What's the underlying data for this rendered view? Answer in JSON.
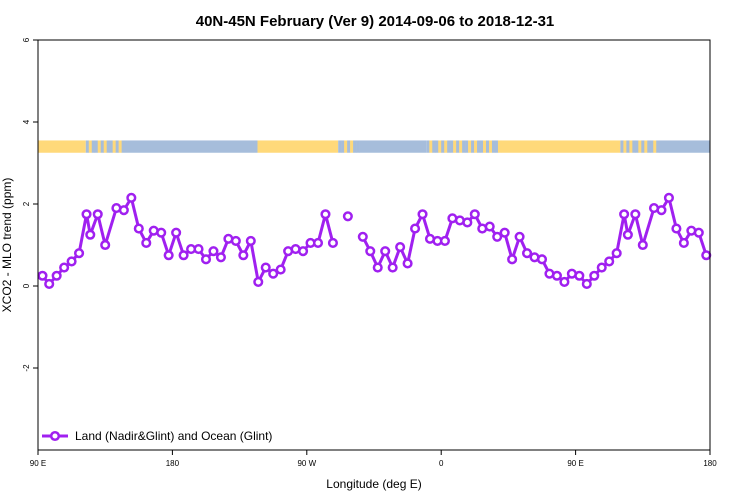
{
  "chart_data": {
    "type": "line",
    "title": "40N-45N February (Ver 9)   2014-09-06 to 2018-12-31",
    "xlabel": "Longitude (deg E)",
    "ylabel": "XCO2 - MLO trend (ppm)",
    "xlim": [
      90,
      540
    ],
    "ylim": [
      -4,
      6
    ],
    "grid": false,
    "legend_position": "bottom-left",
    "x_ticks": [
      {
        "value": 90,
        "label": "90 E"
      },
      {
        "value": 180,
        "label": "180"
      },
      {
        "value": 270,
        "label": "90 W"
      },
      {
        "value": 360,
        "label": "0"
      },
      {
        "value": 450,
        "label": "90 E"
      },
      {
        "value": 540,
        "label": "180"
      }
    ],
    "y_ticks": [
      {
        "value": -2,
        "label": "-2"
      },
      {
        "value": 0,
        "label": "0"
      },
      {
        "value": 2,
        "label": "2"
      },
      {
        "value": 4,
        "label": "4"
      },
      {
        "value": 6,
        "label": "6"
      }
    ],
    "series": [
      {
        "name": "Land (Nadir&Glint) and Ocean (Glint)",
        "color": "#a020f0",
        "points": [
          [
            93.0,
            0.25
          ],
          [
            97.5,
            0.05
          ],
          [
            102.5,
            0.25
          ],
          [
            107.5,
            0.45
          ],
          [
            112.5,
            0.6
          ],
          [
            117.5,
            0.8
          ],
          [
            122.5,
            1.75
          ],
          [
            125.0,
            1.25
          ],
          [
            130.0,
            1.75
          ],
          [
            135.0,
            1.0
          ],
          [
            142.5,
            1.9
          ],
          [
            147.5,
            1.85
          ],
          [
            152.5,
            2.15
          ],
          [
            157.5,
            1.4
          ],
          [
            162.5,
            1.05
          ],
          [
            167.5,
            1.35
          ],
          [
            172.5,
            1.3
          ],
          [
            177.5,
            0.75
          ],
          [
            182.5,
            1.3
          ],
          [
            187.5,
            0.75
          ],
          [
            192.5,
            0.9
          ],
          [
            197.5,
            0.9
          ],
          [
            202.5,
            0.65
          ],
          [
            207.5,
            0.85
          ],
          [
            212.5,
            0.7
          ],
          [
            217.5,
            1.15
          ],
          [
            222.5,
            1.1
          ],
          [
            227.5,
            0.75
          ],
          [
            232.5,
            1.1
          ],
          [
            237.5,
            0.1
          ],
          [
            242.5,
            0.45
          ],
          [
            247.5,
            0.3
          ],
          [
            252.5,
            0.4
          ],
          [
            257.5,
            0.85
          ],
          [
            262.5,
            0.9
          ],
          [
            267.5,
            0.85
          ],
          [
            272.5,
            1.05
          ],
          [
            277.5,
            1.05
          ],
          [
            282.5,
            1.75
          ],
          [
            287.5,
            1.05
          ],
          [
            null,
            null
          ],
          [
            297.5,
            1.7
          ],
          [
            null,
            null
          ],
          [
            307.5,
            1.2
          ],
          [
            312.5,
            0.85
          ],
          [
            317.5,
            0.45
          ],
          [
            322.5,
            0.85
          ],
          [
            327.5,
            0.45
          ],
          [
            332.5,
            0.95
          ],
          [
            337.5,
            0.55
          ],
          [
            342.5,
            1.4
          ],
          [
            347.5,
            1.75
          ],
          [
            352.5,
            1.15
          ],
          [
            357.5,
            1.1
          ],
          [
            362.5,
            1.1
          ],
          [
            367.5,
            1.65
          ],
          [
            372.5,
            1.6
          ],
          [
            377.5,
            1.55
          ],
          [
            382.5,
            1.75
          ],
          [
            387.5,
            1.4
          ],
          [
            392.5,
            1.45
          ],
          [
            397.5,
            1.2
          ],
          [
            402.5,
            1.3
          ],
          [
            407.5,
            0.65
          ],
          [
            412.5,
            1.2
          ],
          [
            417.5,
            0.8
          ],
          [
            422.5,
            0.7
          ],
          [
            427.5,
            0.65
          ],
          [
            432.5,
            0.3
          ],
          [
            437.5,
            0.25
          ],
          [
            442.5,
            0.1
          ],
          [
            447.5,
            0.3
          ],
          [
            452.5,
            0.25
          ],
          [
            457.5,
            0.05
          ],
          [
            462.5,
            0.25
          ],
          [
            467.5,
            0.45
          ],
          [
            472.5,
            0.6
          ],
          [
            477.5,
            0.8
          ],
          [
            482.5,
            1.75
          ],
          [
            485.0,
            1.25
          ],
          [
            490.0,
            1.75
          ],
          [
            495.0,
            1.0
          ],
          [
            502.5,
            1.9
          ],
          [
            507.5,
            1.85
          ],
          [
            512.5,
            2.15
          ],
          [
            517.5,
            1.4
          ],
          [
            522.5,
            1.05
          ],
          [
            527.5,
            1.35
          ],
          [
            532.5,
            1.3
          ],
          [
            537.5,
            0.75
          ]
        ]
      }
    ],
    "surface_band": {
      "y_range": [
        3.25,
        3.55
      ],
      "land_color": "#ffd97a",
      "ocean_color": "#a6bddb",
      "segments": [
        {
          "from": 90,
          "to": 122,
          "type": "land"
        },
        {
          "from": 122,
          "to": 146,
          "type": "mixed"
        },
        {
          "from": 146,
          "to": 237,
          "type": "ocean"
        },
        {
          "from": 237,
          "to": 291,
          "type": "land"
        },
        {
          "from": 291,
          "to": 305,
          "type": "mixed"
        },
        {
          "from": 305,
          "to": 350,
          "type": "ocean"
        },
        {
          "from": 350,
          "to": 400,
          "type": "mixed"
        },
        {
          "from": 400,
          "to": 480,
          "type": "land"
        },
        {
          "from": 480,
          "to": 506,
          "type": "mixed"
        },
        {
          "from": 506,
          "to": 540,
          "type": "ocean"
        }
      ]
    }
  }
}
